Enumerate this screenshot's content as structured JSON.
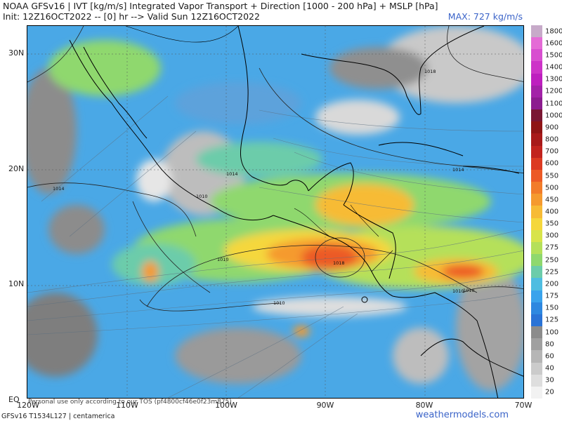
{
  "header": {
    "title_line1": "NOAA GFSv16 | IVT [kg/m/s] Integrated Vapor Transport + Direction [1000 - 200 hPa] + MSLP [hPa]",
    "title_line2": "Init: 12Z16OCT2022 -- [0] hr --> Valid Sun 12Z16OCT2022",
    "max_label": "MAX: 727 kg/m/s"
  },
  "map": {
    "lat_labels": [
      "30N",
      "20N",
      "10N",
      "EQ"
    ],
    "lon_labels": [
      "120W",
      "110W",
      "100W",
      "90W",
      "80W",
      "70W"
    ],
    "isobar_labels": [
      "1018",
      "1014",
      "1014",
      "1010",
      "1014",
      "1010",
      "1018",
      "1010",
      "1010",
      "1010"
    ]
  },
  "colorbar": {
    "levels": [
      "1800",
      "1600",
      "1500",
      "1400",
      "1300",
      "1200",
      "1100",
      "1000",
      "900",
      "800",
      "700",
      "600",
      "550",
      "500",
      "450",
      "400",
      "350",
      "300",
      "275",
      "250",
      "225",
      "200",
      "175",
      "150",
      "125",
      "100",
      "80",
      "60",
      "40",
      "30",
      "20"
    ],
    "colors": [
      "#c7aac9",
      "#e46bd6",
      "#d84fd0",
      "#cd33c8",
      "#be1fbf",
      "#a322a8",
      "#8c1c8f",
      "#7a1733",
      "#8f1515",
      "#a81a1a",
      "#c2231e",
      "#dc3a22",
      "#ec5a26",
      "#f27c2a",
      "#f59a2f",
      "#f7bb36",
      "#f5d73c",
      "#d8e44a",
      "#b5e05a",
      "#8fd86e",
      "#6cccaa",
      "#4fbde1",
      "#3aa3ec",
      "#2e88e0",
      "#2a73d6",
      "#8c8c8c",
      "#a0a0a0",
      "#b6b6b6",
      "#cbcbcb",
      "#dedede",
      "#f2f2f2"
    ]
  },
  "footer": {
    "disclaimer": "Personal use only according to our TOS (pf4800cf46e0f23m875)",
    "model_info": "GFSv16 T1534L127 | centamerica",
    "site": "weathermodels.com"
  }
}
